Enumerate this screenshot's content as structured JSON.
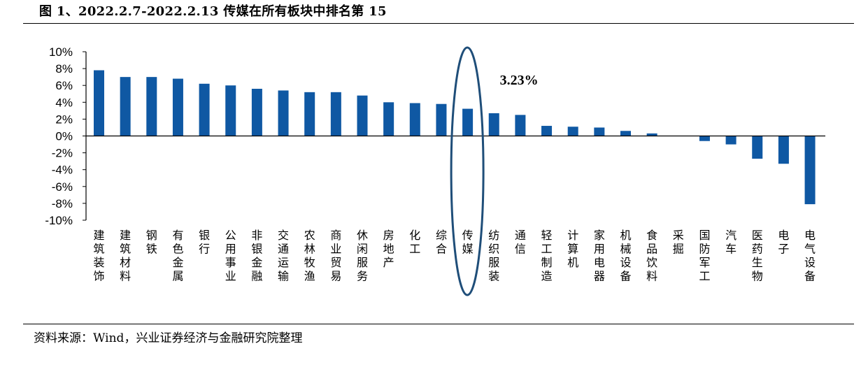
{
  "header": {
    "title": "图 1、2022.2.7-2022.2.13 传媒在所有板块中排名第 15"
  },
  "footer": {
    "source": "资料来源：Wind，兴业证券经济与金融研究院整理"
  },
  "chart_data": {
    "type": "bar",
    "categories": [
      "建筑装饰",
      "建筑材料",
      "钢铁",
      "有色金属",
      "银行",
      "公用事业",
      "非银金融",
      "交通运输",
      "农林牧渔",
      "商业贸易",
      "休闲服务",
      "房地产",
      "化工",
      "综合",
      "传媒",
      "纺织服装",
      "通信",
      "轻工制造",
      "计算机",
      "家用电器",
      "机械设备",
      "食品饮料",
      "采掘",
      "国防军工",
      "汽车",
      "医药生物",
      "电子",
      "电气设备"
    ],
    "values": [
      7.8,
      7.0,
      7.0,
      6.8,
      6.2,
      6.0,
      5.6,
      5.4,
      5.2,
      5.2,
      4.8,
      4.0,
      3.9,
      3.8,
      3.23,
      2.7,
      2.5,
      1.2,
      1.1,
      1.0,
      0.6,
      0.3,
      0.0,
      -0.6,
      -1.0,
      -2.7,
      -3.3,
      -8.1
    ],
    "ylim": [
      -10,
      10
    ],
    "yticks": [
      10,
      8,
      6,
      4,
      2,
      0,
      -2,
      -4,
      -6,
      -8,
      -10
    ],
    "ytick_labels": [
      "10%",
      "8%",
      "6%",
      "4%",
      "2%",
      "0%",
      "-2%",
      "-4%",
      "-6%",
      "-8%",
      "-10%"
    ],
    "bar_color": "#0f58a3",
    "ellipse_color": "#1f4e79",
    "highlight": {
      "category": "传媒",
      "label": "3.23%"
    },
    "grid": false,
    "legend": "none"
  }
}
